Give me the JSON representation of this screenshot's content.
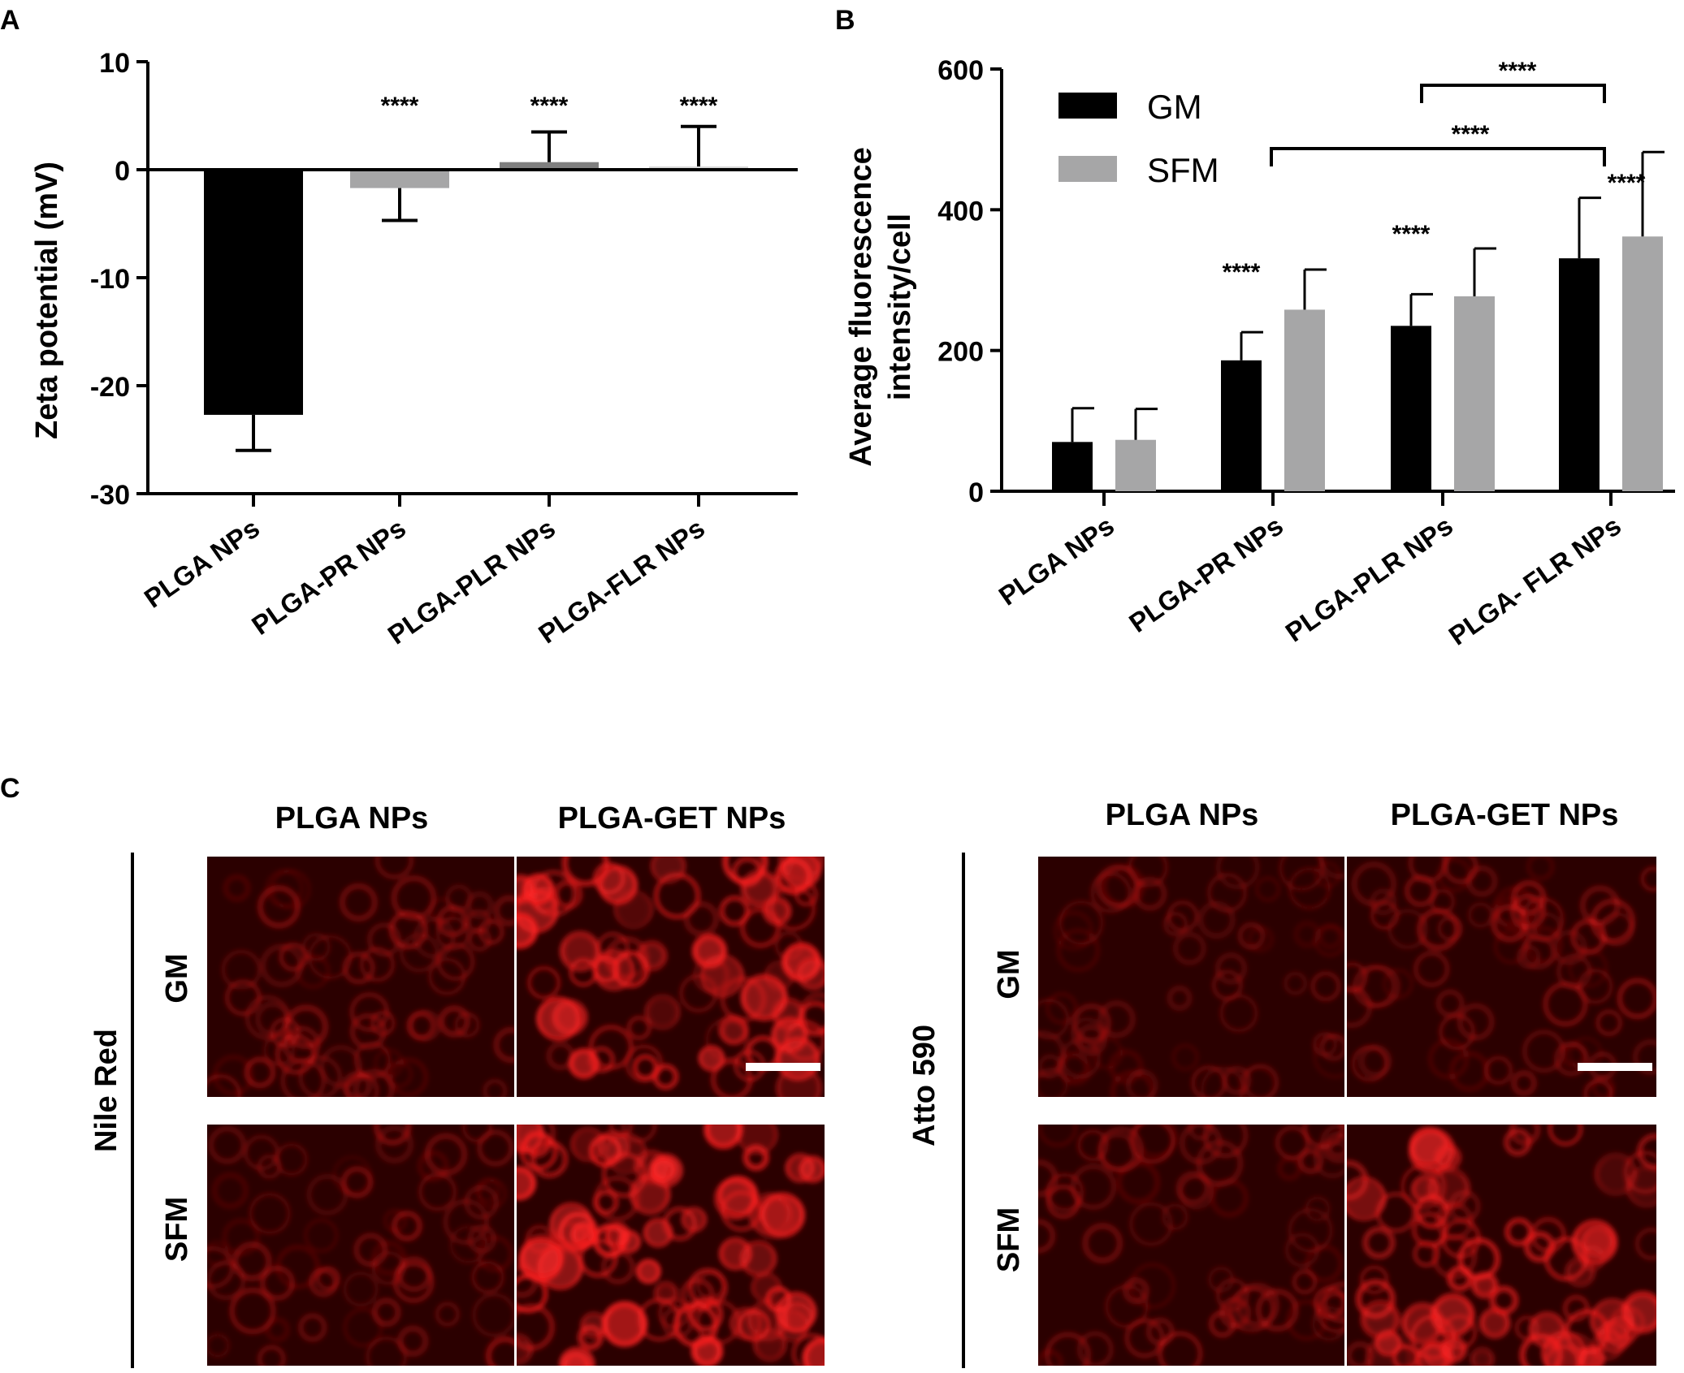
{
  "panel_labels": {
    "a": "A",
    "b": "B",
    "c": "C"
  },
  "colors": {
    "gm": "#000000",
    "sfm": "#a6a6a7",
    "fluor": "#ff1a1a",
    "fluor_bg": "#2a0000",
    "scalebar": "#ffffff"
  },
  "chart_data": [
    {
      "type": "bar",
      "panel": "A",
      "ylabel": "Zeta potential (mV)",
      "xlabel": "",
      "ylim": [
        -30,
        10
      ],
      "yticks": [
        "10",
        "0",
        "-10",
        "-20",
        "-30"
      ],
      "categories": [
        "PLGA NPs",
        "PLGA-PR NPs",
        "PLGA-PLR NPs",
        "PLGA-FLR NPs"
      ],
      "values": [
        -22.7,
        -1.7,
        0.7,
        0.3
      ],
      "errors": [
        3.3,
        3.0,
        2.8,
        3.7
      ],
      "bar_colors": [
        "#000000",
        "#a6a6a7",
        "#7f7f7f",
        "#d9d9d9"
      ],
      "annotations": [
        "",
        "****",
        "****",
        "****"
      ],
      "grid": false
    },
    {
      "type": "bar",
      "panel": "B",
      "ylabel": "Average fluorescence intensity/cell",
      "ylabel_lines": [
        "Average fluorescence",
        "intensity/cell"
      ],
      "xlabel": "",
      "ylim": [
        0,
        600
      ],
      "yticks": [
        "600",
        "400",
        "200",
        "0"
      ],
      "categories": [
        "PLGA NPs",
        "PLGA-PR NPs",
        "PLGA-PLR NPs",
        "PLGA- FLR NPs"
      ],
      "series": [
        {
          "name": "GM",
          "values": [
            70,
            186,
            235,
            331
          ],
          "errors": [
            48,
            40,
            45,
            86
          ]
        },
        {
          "name": "SFM",
          "values": [
            73,
            258,
            277,
            362
          ],
          "errors": [
            44,
            57,
            68,
            120
          ]
        }
      ],
      "annotations": [
        "",
        "****",
        "****",
        "****"
      ],
      "brackets": [
        {
          "from": "PLGA-PLR NPs",
          "to": "PLGA- FLR NPs",
          "label": "****"
        },
        {
          "from": "PLGA-PR NPs",
          "to": "PLGA- FLR NPs",
          "label": "****"
        }
      ],
      "legend": "top-left",
      "grid": false
    }
  ],
  "micrographs": {
    "left": {
      "stain": "Nile Red",
      "columns": [
        "PLGA NPs",
        "PLGA-GET NPs"
      ],
      "rows": [
        "GM",
        "SFM"
      ]
    },
    "right": {
      "stain": "Atto 590",
      "columns": [
        "PLGA NPs",
        "PLGA-GET NPs"
      ],
      "rows": [
        "GM",
        "SFM"
      ]
    }
  }
}
